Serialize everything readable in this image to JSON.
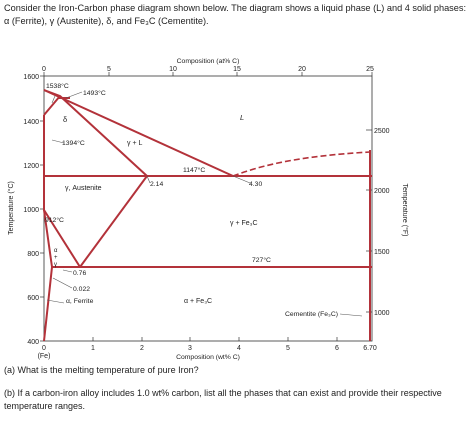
{
  "intro": "Consider the Iron-Carbon phase diagram shown below. The diagram shows a liquid phase (L) and 4 solid phases: α (Ferrite), γ (Austenite), δ, and Fe₃C (Cementite).",
  "diagram": {
    "top_axis_title": "Composition (at% C)",
    "top_ticks": [
      "0",
      "5",
      "10",
      "15",
      "20",
      "25"
    ],
    "bottom_axis_title": "Composition (wt% C)",
    "bottom_ticks": [
      "0",
      "1",
      "2",
      "3",
      "4",
      "5",
      "6",
      "6.70"
    ],
    "bottom_left_note": "(Fe)",
    "left_axis_title": "Temperature (°C)",
    "left_ticks": [
      "1600",
      "1400",
      "1200",
      "1000",
      "800",
      "600",
      "400"
    ],
    "right_axis_title": "Temperature (°F)",
    "right_ticks": [
      "2500",
      "2000",
      "1500",
      "1000"
    ],
    "labels": {
      "t1538": "1538°C",
      "t1493": "1493°C",
      "t1394": "1394°C",
      "t1147": "1147°C",
      "t912": "912°C",
      "t727": "727°C",
      "c214": "2.14",
      "c430": "4.30",
      "c076": "0.76",
      "c0022": "0.022",
      "delta": "δ",
      "liquid": "L",
      "gamma_l": "γ + L",
      "austenite": "γ, Austenite",
      "gamma_fe3c": "γ + Fe₃C",
      "alpha_fe3c": "α + Fe₃C",
      "ferrite": "α, Ferrite",
      "cementite": "Cementite (Fe₃C)",
      "alpha_v": "α",
      "plus_v": "+",
      "gamma_v": "γ"
    }
  },
  "questions": {
    "a": "(a) What is the melting temperature of pure Iron?",
    "b": "(b) If a carbon-iron alloy includes 1.0 wt% carbon, list all the phases that can exist and provide their respective temperature ranges."
  },
  "colors": {
    "phase_line": "#b3323a",
    "axis": "#333333"
  }
}
